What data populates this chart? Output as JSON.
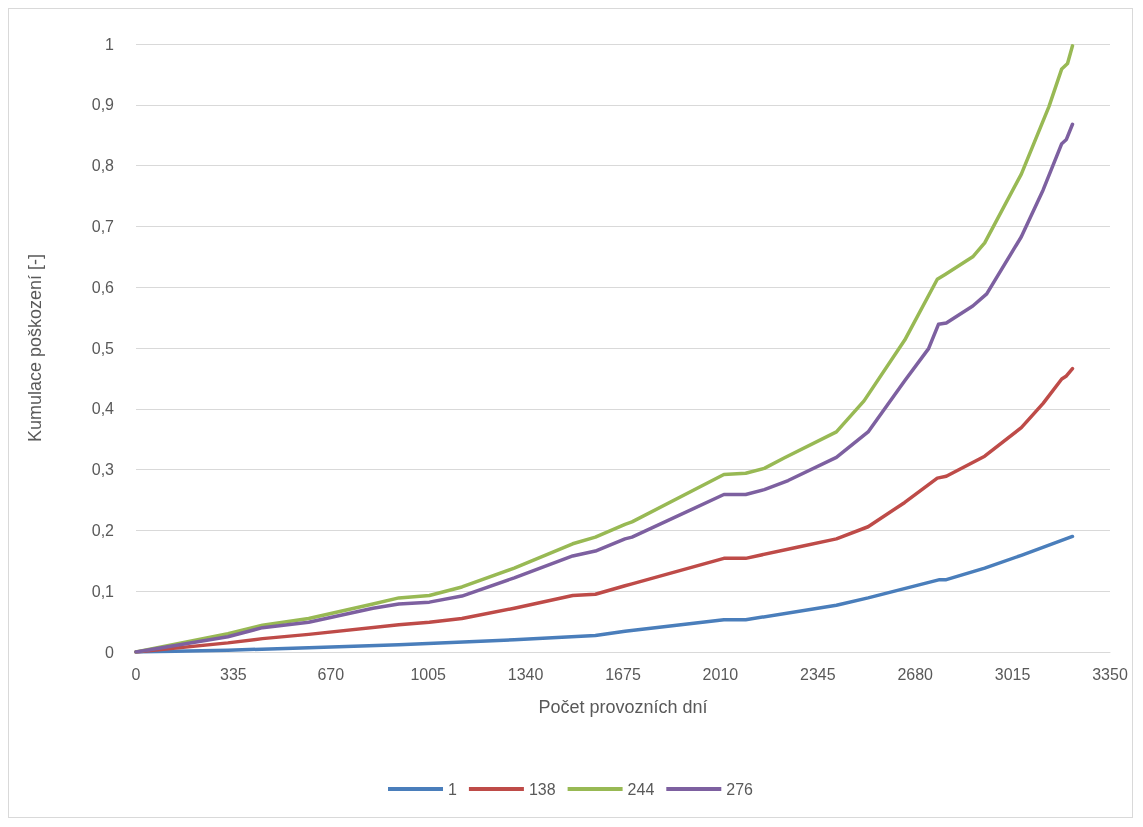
{
  "chart_data": {
    "type": "line",
    "xlabel": "Počet provozních dní",
    "ylabel": "Kumulace poškození [-]",
    "xlim": [
      0,
      3350
    ],
    "xticks": [
      0,
      335,
      670,
      1005,
      1340,
      1675,
      2010,
      2345,
      2680,
      3015,
      3350
    ],
    "ylim": [
      0,
      1
    ],
    "yticks": [
      0,
      {
        "value": 0.1,
        "label": "0,1"
      },
      {
        "value": 0.2,
        "label": "0,2"
      },
      {
        "value": 0.3,
        "label": "0,3"
      },
      {
        "value": 0.4,
        "label": "0,4"
      },
      {
        "value": 0.5,
        "label": "0,5"
      },
      {
        "value": 0.6,
        "label": "0,6"
      },
      {
        "value": 0.7,
        "label": "0,7"
      },
      {
        "value": 0.8,
        "label": "0,8"
      },
      {
        "value": 0.9,
        "label": "0,9"
      },
      1
    ],
    "grid": "y",
    "legend": "bottom",
    "marker": "none",
    "line_style": "solid",
    "series": [
      {
        "name": "1",
        "color": "#4a7ebb",
        "x": [
          0,
          316,
          594,
          904,
          1301,
          1580,
          1682,
          2022,
          2097,
          2409,
          2518,
          2764,
          2787,
          2919,
          3045,
          3221
        ],
        "values": [
          0,
          0.003,
          0.007,
          0.012,
          0.02,
          0.027,
          0.034,
          0.053,
          0.053,
          0.077,
          0.089,
          0.119,
          0.119,
          0.138,
          0.159,
          0.19
        ]
      },
      {
        "name": "138",
        "color": "#be4b48",
        "x": [
          0,
          316,
          435,
          594,
          904,
          1009,
          1121,
          1301,
          1502,
          1580,
          1682,
          1706,
          2022,
          2097,
          2270,
          2409,
          2518,
          2644,
          2756,
          2787,
          2919,
          3045,
          3120,
          3184,
          3200,
          3221
        ],
        "values": [
          0,
          0.015,
          0.022,
          0.029,
          0.045,
          0.049,
          0.055,
          0.072,
          0.093,
          0.095,
          0.109,
          0.112,
          0.154,
          0.154,
          0.172,
          0.186,
          0.206,
          0.246,
          0.286,
          0.289,
          0.322,
          0.369,
          0.409,
          0.449,
          0.454,
          0.466
        ]
      },
      {
        "name": "244",
        "color": "#98b954",
        "x": [
          0,
          316,
          435,
          594,
          815,
          904,
          1009,
          1121,
          1301,
          1502,
          1580,
          1682,
          1706,
          2022,
          2097,
          2161,
          2229,
          2409,
          2504,
          2644,
          2756,
          2783,
          2878,
          2919,
          3045,
          3140,
          3184,
          3204,
          3221
        ],
        "values": [
          0,
          0.03,
          0.044,
          0.055,
          0.079,
          0.089,
          0.093,
          0.107,
          0.138,
          0.178,
          0.189,
          0.21,
          0.214,
          0.292,
          0.294,
          0.302,
          0.319,
          0.362,
          0.413,
          0.513,
          0.613,
          0.621,
          0.65,
          0.673,
          0.786,
          0.897,
          0.959,
          0.968,
          0.997
        ]
      },
      {
        "name": "276",
        "color": "#7d60a0",
        "x": [
          0,
          316,
          435,
          594,
          815,
          904,
          1009,
          1121,
          1301,
          1502,
          1580,
          1682,
          1706,
          2022,
          2097,
          2161,
          2243,
          2409,
          2518,
          2644,
          2726,
          2760,
          2787,
          2878,
          2926,
          3045,
          3120,
          3184,
          3200,
          3221
        ],
        "values": [
          0,
          0.025,
          0.04,
          0.049,
          0.072,
          0.079,
          0.082,
          0.092,
          0.122,
          0.158,
          0.166,
          0.186,
          0.189,
          0.259,
          0.259,
          0.267,
          0.282,
          0.32,
          0.362,
          0.446,
          0.499,
          0.539,
          0.541,
          0.569,
          0.589,
          0.683,
          0.76,
          0.836,
          0.843,
          0.868
        ]
      }
    ]
  }
}
